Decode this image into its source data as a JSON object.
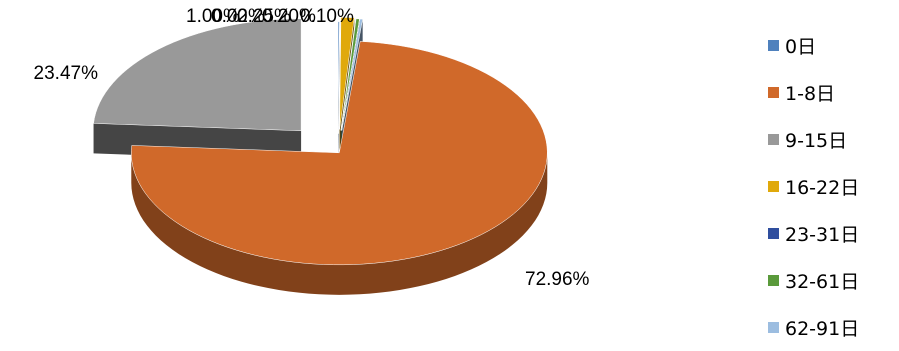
{
  "chart_data": {
    "type": "pie",
    "style": "3d-exploded",
    "categories": [
      "0日",
      "1-8日",
      "9-15日",
      "16-22日",
      "23-31日",
      "32-61日",
      "62-91日"
    ],
    "values": [
      0.1,
      72.96,
      23.47,
      1.0,
      0.02,
      0.25,
      0.2
    ],
    "data_labels": [
      "0.10%",
      "72.96%",
      "23.47%",
      "1.00%",
      "0.02%",
      "0.25%",
      "0.20%"
    ],
    "colors": [
      "#4f81bd",
      "#d0692a",
      "#999999",
      "#e0a90b",
      "#2f4e9e",
      "#5a9a3b",
      "#9cbde0"
    ],
    "legend_position": "right"
  }
}
